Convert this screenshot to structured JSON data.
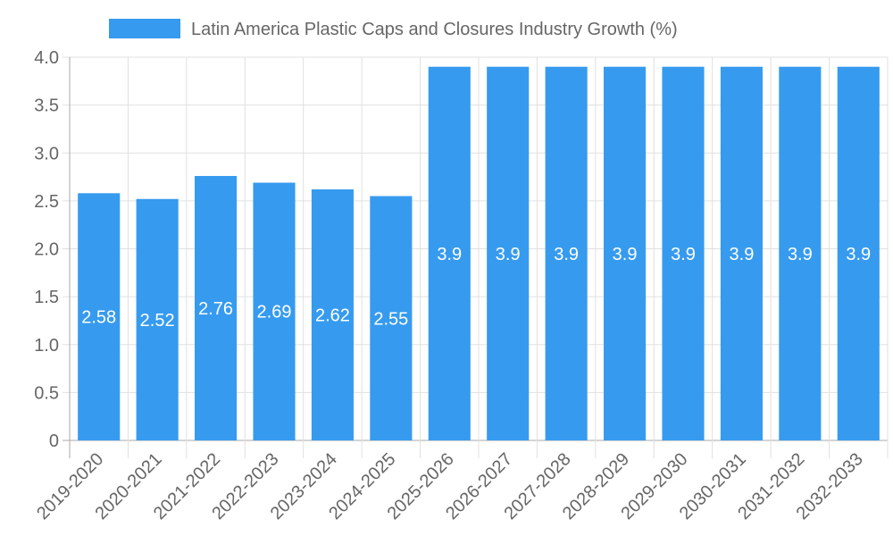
{
  "chart_data": {
    "type": "bar",
    "title": "",
    "legend": {
      "label": "Latin America Plastic Caps and Closures Industry Growth (%)",
      "placement": "top-center"
    },
    "categories": [
      "2019-2020",
      "2020-2021",
      "2021-2022",
      "2022-2023",
      "2023-2024",
      "2024-2025",
      "2025-2026",
      "2026-2027",
      "2027-2028",
      "2028-2029",
      "2029-2030",
      "2030-2031",
      "2031-2032",
      "2032-2033"
    ],
    "values": [
      2.58,
      2.52,
      2.76,
      2.69,
      2.62,
      2.55,
      3.9,
      3.9,
      3.9,
      3.9,
      3.9,
      3.9,
      3.9,
      3.9
    ],
    "data_labels": [
      "2.58",
      "2.52",
      "2.76",
      "2.69",
      "2.62",
      "2.55",
      "3.9",
      "3.9",
      "3.9",
      "3.9",
      "3.9",
      "3.9",
      "3.9",
      "3.9"
    ],
    "y_ticks": [
      "0",
      "0.5",
      "1.0",
      "1.5",
      "2.0",
      "2.5",
      "3.0",
      "3.5",
      "4.0"
    ],
    "ylim": [
      0,
      4
    ],
    "xlabel": "",
    "ylabel": "",
    "grid": true,
    "bar_color": "#369bef"
  }
}
